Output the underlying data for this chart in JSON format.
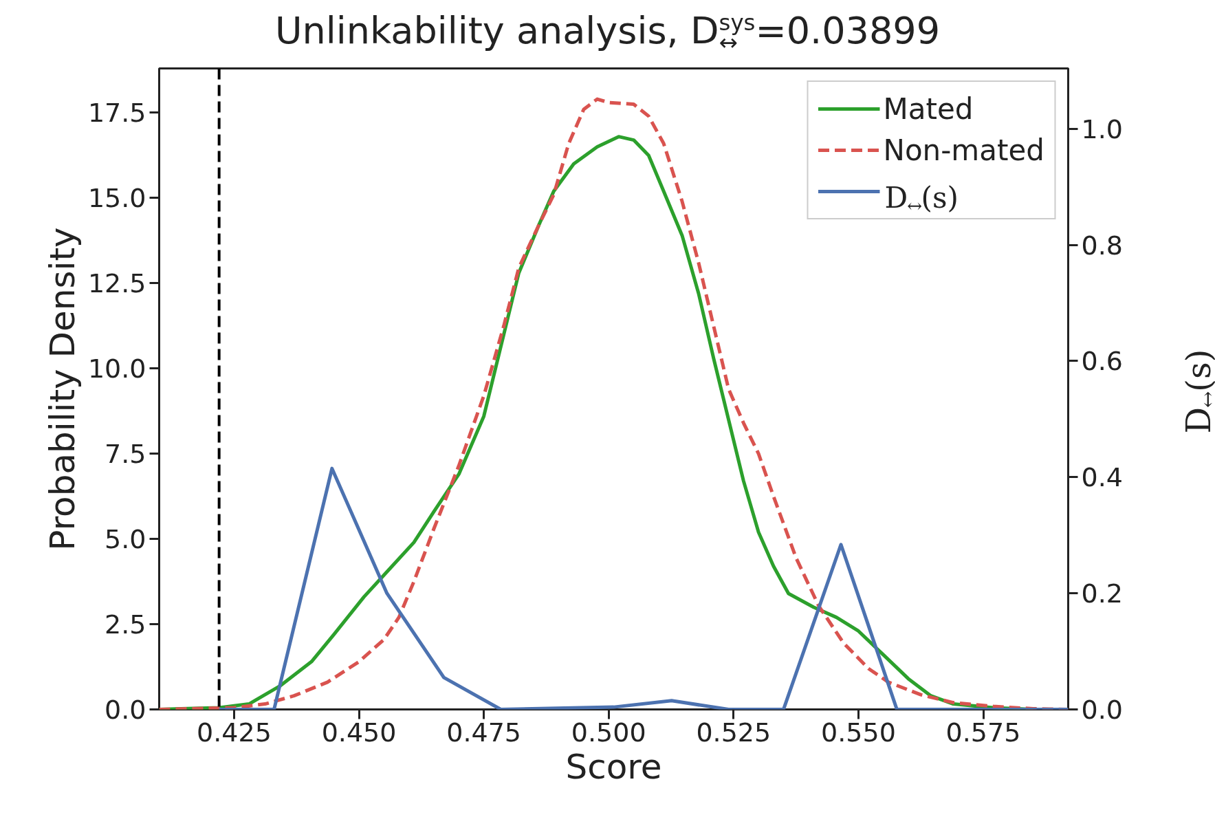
{
  "chart_data": {
    "type": "line",
    "title": "Unlinkability analysis, D$^{sys}$$_{↔}$=0.03899",
    "xlabel": "Score",
    "ylabel": "Probability Density",
    "y2label": "D$_{↔}$(s)",
    "xlim": [
      0.41,
      0.592
    ],
    "ylim": [
      0,
      18.8
    ],
    "y2lim": [
      0,
      1.104
    ],
    "xticks": [
      {
        "value": 0.425,
        "label": "0.425"
      },
      {
        "value": 0.45,
        "label": "0.450"
      },
      {
        "value": 0.475,
        "label": "0.475"
      },
      {
        "value": 0.5,
        "label": "0.500"
      },
      {
        "value": 0.525,
        "label": "0.525"
      },
      {
        "value": 0.55,
        "label": "0.550"
      },
      {
        "value": 0.575,
        "label": "0.575"
      }
    ],
    "yticks": [
      {
        "value": 0,
        "label": "0.0"
      },
      {
        "value": 2.5,
        "label": "2.5"
      },
      {
        "value": 5,
        "label": "5.0"
      },
      {
        "value": 7.5,
        "label": "7.5"
      },
      {
        "value": 10,
        "label": "10.0"
      },
      {
        "value": 12.5,
        "label": "12.5"
      },
      {
        "value": 15,
        "label": "15.0"
      },
      {
        "value": 17.5,
        "label": "17.5"
      }
    ],
    "y2ticks": [
      {
        "value": 0,
        "label": "0.0"
      },
      {
        "value": 0.2,
        "label": "0.2"
      },
      {
        "value": 0.4,
        "label": "0.4"
      },
      {
        "value": 0.6,
        "label": "0.6"
      },
      {
        "value": 0.8,
        "label": "0.8"
      },
      {
        "value": 1,
        "label": "1.0"
      }
    ],
    "grid": false,
    "legend": "top right",
    "ref_lines": [
      {
        "axis": "x",
        "value": 0.422,
        "color": "#000000",
        "line_style": "dashed"
      }
    ],
    "series": [
      {
        "name": "Mated",
        "color": "#2ca02c",
        "line_style": "solid",
        "x": [
          0.41,
          0.422,
          0.428,
          0.4343,
          0.4405,
          0.445,
          0.451,
          0.456,
          0.461,
          0.465,
          0.47,
          0.475,
          0.479,
          0.482,
          0.486,
          0.489,
          0.493,
          0.4977,
          0.502,
          0.505,
          0.508,
          0.511,
          0.5147,
          0.518,
          0.521,
          0.524,
          0.527,
          0.53,
          0.533,
          0.536,
          0.541,
          0.5456,
          0.55,
          0.555,
          0.56,
          0.5645,
          0.569,
          0.577,
          0.585
        ],
        "values": [
          0,
          0.05,
          0.16,
          0.7,
          1.4,
          2.2,
          3.3,
          4.1,
          4.9,
          5.8,
          6.9,
          8.6,
          11.0,
          12.8,
          14.2,
          15.2,
          16.0,
          16.5,
          16.8,
          16.7,
          16.25,
          15.2,
          13.9,
          12.2,
          10.3,
          8.5,
          6.7,
          5.2,
          4.2,
          3.4,
          3.0,
          2.7,
          2.3,
          1.6,
          0.9,
          0.4,
          0.16,
          0.05,
          0
        ]
      },
      {
        "name": "Non-mated",
        "color": "#d9534f",
        "line_style": "dashed",
        "x": [
          0.41,
          0.425,
          0.4312,
          0.437,
          0.4437,
          0.45,
          0.455,
          0.458,
          0.461,
          0.465,
          0.47,
          0.475,
          0.479,
          0.482,
          0.486,
          0.489,
          0.492,
          0.495,
          0.4977,
          0.5,
          0.505,
          0.508,
          0.511,
          0.5147,
          0.518,
          0.521,
          0.524,
          0.527,
          0.53,
          0.533,
          0.5375,
          0.542,
          0.547,
          0.552,
          0.556,
          0.5625,
          0.569,
          0.577,
          0.585,
          0.592
        ],
        "values": [
          0,
          0.05,
          0.16,
          0.4,
          0.8,
          1.4,
          2.05,
          2.7,
          3.75,
          5.3,
          7.15,
          9.2,
          11.25,
          12.95,
          14.2,
          15.1,
          16.6,
          17.6,
          17.9,
          17.8,
          17.75,
          17.4,
          16.6,
          14.9,
          13.1,
          11.25,
          9.4,
          8.4,
          7.5,
          6.25,
          4.45,
          3.05,
          1.95,
          1.2,
          0.8,
          0.43,
          0.2,
          0.09,
          0.02,
          0
        ]
      },
      {
        "name": "D$_{↔}$(s)",
        "color": "#4c72b0",
        "line_style": "solid",
        "axis": "y2",
        "x": [
          0.422,
          0.433,
          0.4446,
          0.4556,
          0.467,
          0.4784,
          0.501,
          0.5126,
          0.524,
          0.535,
          0.5465,
          0.5577,
          0.592
        ],
        "values": [
          0,
          0,
          0.415,
          0.2,
          0.055,
          0,
          0.004,
          0.015,
          0,
          0,
          0.284,
          0,
          0
        ]
      }
    ]
  }
}
